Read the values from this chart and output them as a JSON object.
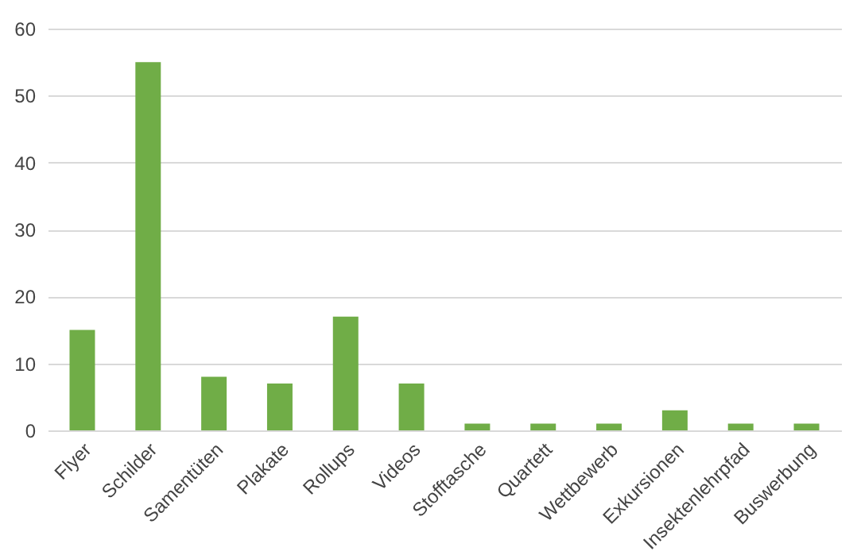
{
  "chart_data": {
    "type": "bar",
    "categories": [
      "Flyer",
      "Schilder",
      "Samentüten",
      "Plakate",
      "Rollups",
      "Videos",
      "Stofftasche",
      "Quartett",
      "Wettbewerb",
      "Exkursionen",
      "Insektenlehrpfad",
      "Buswerbung"
    ],
    "values": [
      15,
      55,
      8,
      7,
      17,
      7,
      1,
      1,
      1,
      3,
      1,
      1
    ],
    "color": "#70ad47",
    "ylim": [
      0,
      60
    ],
    "yticks": [
      0,
      10,
      20,
      30,
      40,
      50,
      60
    ],
    "grid": "y"
  }
}
